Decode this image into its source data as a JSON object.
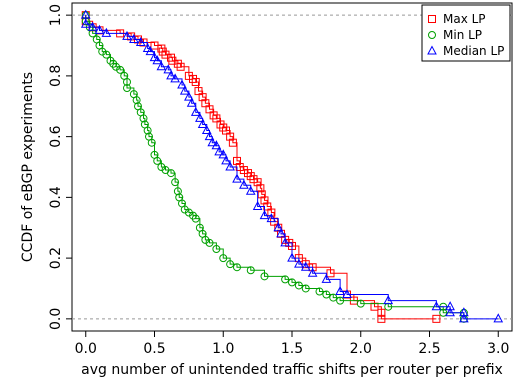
{
  "chart_data": {
    "type": "line",
    "title": "",
    "xlabel": "avg number of unintended traffic shifts per router per prefix",
    "ylabel": "CCDF of eBGP experiments",
    "xlim": [
      -0.1,
      3.1
    ],
    "ylim": [
      -0.04,
      1.04
    ],
    "xticks": [
      "0.0",
      "0.5",
      "1.0",
      "1.5",
      "2.0",
      "2.5",
      "3.0"
    ],
    "yticks": [
      "0.0",
      "0.2",
      "0.4",
      "0.6",
      "0.8",
      "1.0"
    ],
    "reference_lines_y": [
      0,
      1
    ],
    "legend": {
      "placement": "top-right"
    },
    "series": [
      {
        "name": "Max LP",
        "color": "#ff0000",
        "marker": "square",
        "points": [
          [
            0.0,
            1.0
          ],
          [
            0.0,
            0.98
          ],
          [
            0.05,
            0.96
          ],
          [
            0.1,
            0.95
          ],
          [
            0.25,
            0.94
          ],
          [
            0.33,
            0.93
          ],
          [
            0.38,
            0.92
          ],
          [
            0.42,
            0.91
          ],
          [
            0.5,
            0.9
          ],
          [
            0.55,
            0.89
          ],
          [
            0.56,
            0.88
          ],
          [
            0.58,
            0.87
          ],
          [
            0.62,
            0.86
          ],
          [
            0.63,
            0.85
          ],
          [
            0.67,
            0.84
          ],
          [
            0.69,
            0.83
          ],
          [
            0.75,
            0.8
          ],
          [
            0.78,
            0.79
          ],
          [
            0.8,
            0.78
          ],
          [
            0.82,
            0.75
          ],
          [
            0.85,
            0.73
          ],
          [
            0.87,
            0.71
          ],
          [
            0.9,
            0.69
          ],
          [
            0.93,
            0.67
          ],
          [
            0.95,
            0.66
          ],
          [
            0.98,
            0.64
          ],
          [
            1.0,
            0.63
          ],
          [
            1.02,
            0.62
          ],
          [
            1.05,
            0.6
          ],
          [
            1.07,
            0.58
          ],
          [
            1.1,
            0.52
          ],
          [
            1.12,
            0.5
          ],
          [
            1.15,
            0.49
          ],
          [
            1.18,
            0.48
          ],
          [
            1.2,
            0.47
          ],
          [
            1.22,
            0.46
          ],
          [
            1.25,
            0.45
          ],
          [
            1.27,
            0.43
          ],
          [
            1.28,
            0.41
          ],
          [
            1.3,
            0.39
          ],
          [
            1.32,
            0.37
          ],
          [
            1.35,
            0.35
          ],
          [
            1.37,
            0.32
          ],
          [
            1.4,
            0.3
          ],
          [
            1.42,
            0.28
          ],
          [
            1.45,
            0.26
          ],
          [
            1.48,
            0.25
          ],
          [
            1.5,
            0.24
          ],
          [
            1.55,
            0.2
          ],
          [
            1.6,
            0.18
          ],
          [
            1.65,
            0.17
          ],
          [
            1.78,
            0.15
          ],
          [
            1.9,
            0.08
          ],
          [
            1.95,
            0.06
          ],
          [
            2.1,
            0.04
          ],
          [
            2.15,
            0.02
          ],
          [
            2.15,
            0.0
          ],
          [
            2.55,
            0.0
          ]
        ]
      },
      {
        "name": "Min LP",
        "color": "#00a000",
        "marker": "circle",
        "points": [
          [
            0.0,
            1.0
          ],
          [
            0.0,
            0.98
          ],
          [
            0.03,
            0.96
          ],
          [
            0.05,
            0.94
          ],
          [
            0.08,
            0.92
          ],
          [
            0.1,
            0.9
          ],
          [
            0.12,
            0.88
          ],
          [
            0.15,
            0.87
          ],
          [
            0.18,
            0.85
          ],
          [
            0.2,
            0.84
          ],
          [
            0.22,
            0.83
          ],
          [
            0.25,
            0.82
          ],
          [
            0.28,
            0.8
          ],
          [
            0.3,
            0.78
          ],
          [
            0.3,
            0.76
          ],
          [
            0.35,
            0.74
          ],
          [
            0.37,
            0.72
          ],
          [
            0.38,
            0.7
          ],
          [
            0.4,
            0.68
          ],
          [
            0.42,
            0.66
          ],
          [
            0.43,
            0.64
          ],
          [
            0.45,
            0.62
          ],
          [
            0.46,
            0.6
          ],
          [
            0.48,
            0.58
          ],
          [
            0.5,
            0.54
          ],
          [
            0.52,
            0.52
          ],
          [
            0.55,
            0.5
          ],
          [
            0.58,
            0.49
          ],
          [
            0.62,
            0.48
          ],
          [
            0.65,
            0.45
          ],
          [
            0.67,
            0.42
          ],
          [
            0.68,
            0.4
          ],
          [
            0.7,
            0.38
          ],
          [
            0.72,
            0.36
          ],
          [
            0.75,
            0.35
          ],
          [
            0.78,
            0.34
          ],
          [
            0.8,
            0.33
          ],
          [
            0.83,
            0.3
          ],
          [
            0.85,
            0.28
          ],
          [
            0.87,
            0.26
          ],
          [
            0.9,
            0.25
          ],
          [
            0.95,
            0.23
          ],
          [
            1.0,
            0.2
          ],
          [
            1.05,
            0.18
          ],
          [
            1.1,
            0.17
          ],
          [
            1.2,
            0.16
          ],
          [
            1.3,
            0.14
          ],
          [
            1.45,
            0.13
          ],
          [
            1.5,
            0.12
          ],
          [
            1.55,
            0.11
          ],
          [
            1.6,
            0.1
          ],
          [
            1.7,
            0.09
          ],
          [
            1.75,
            0.08
          ],
          [
            1.8,
            0.07
          ],
          [
            1.85,
            0.06
          ],
          [
            2.0,
            0.05
          ],
          [
            2.2,
            0.04
          ],
          [
            2.6,
            0.04
          ],
          [
            2.6,
            0.02
          ],
          [
            2.75,
            0.02
          ],
          [
            2.75,
            0.0
          ]
        ]
      },
      {
        "name": "Median LP",
        "color": "#0000ff",
        "marker": "triangle",
        "points": [
          [
            0.0,
            1.0
          ],
          [
            0.0,
            0.97
          ],
          [
            0.05,
            0.96
          ],
          [
            0.1,
            0.95
          ],
          [
            0.15,
            0.94
          ],
          [
            0.3,
            0.93
          ],
          [
            0.35,
            0.92
          ],
          [
            0.4,
            0.91
          ],
          [
            0.45,
            0.89
          ],
          [
            0.47,
            0.88
          ],
          [
            0.5,
            0.86
          ],
          [
            0.52,
            0.85
          ],
          [
            0.55,
            0.83
          ],
          [
            0.6,
            0.82
          ],
          [
            0.62,
            0.8
          ],
          [
            0.65,
            0.79
          ],
          [
            0.7,
            0.77
          ],
          [
            0.72,
            0.75
          ],
          [
            0.75,
            0.73
          ],
          [
            0.77,
            0.71
          ],
          [
            0.8,
            0.68
          ],
          [
            0.83,
            0.66
          ],
          [
            0.85,
            0.64
          ],
          [
            0.88,
            0.62
          ],
          [
            0.9,
            0.6
          ],
          [
            0.92,
            0.58
          ],
          [
            0.95,
            0.57
          ],
          [
            0.97,
            0.55
          ],
          [
            1.0,
            0.54
          ],
          [
            1.02,
            0.52
          ],
          [
            1.05,
            0.5
          ],
          [
            1.1,
            0.46
          ],
          [
            1.15,
            0.44
          ],
          [
            1.2,
            0.42
          ],
          [
            1.25,
            0.37
          ],
          [
            1.3,
            0.34
          ],
          [
            1.35,
            0.33
          ],
          [
            1.4,
            0.3
          ],
          [
            1.42,
            0.28
          ],
          [
            1.45,
            0.25
          ],
          [
            1.5,
            0.2
          ],
          [
            1.55,
            0.18
          ],
          [
            1.6,
            0.17
          ],
          [
            1.65,
            0.15
          ],
          [
            1.75,
            0.13
          ],
          [
            1.85,
            0.09
          ],
          [
            1.9,
            0.08
          ],
          [
            2.2,
            0.06
          ],
          [
            2.55,
            0.04
          ],
          [
            2.65,
            0.04
          ],
          [
            2.65,
            0.02
          ],
          [
            2.75,
            0.02
          ],
          [
            2.75,
            0.0
          ],
          [
            3.0,
            0.0
          ]
        ]
      }
    ]
  }
}
